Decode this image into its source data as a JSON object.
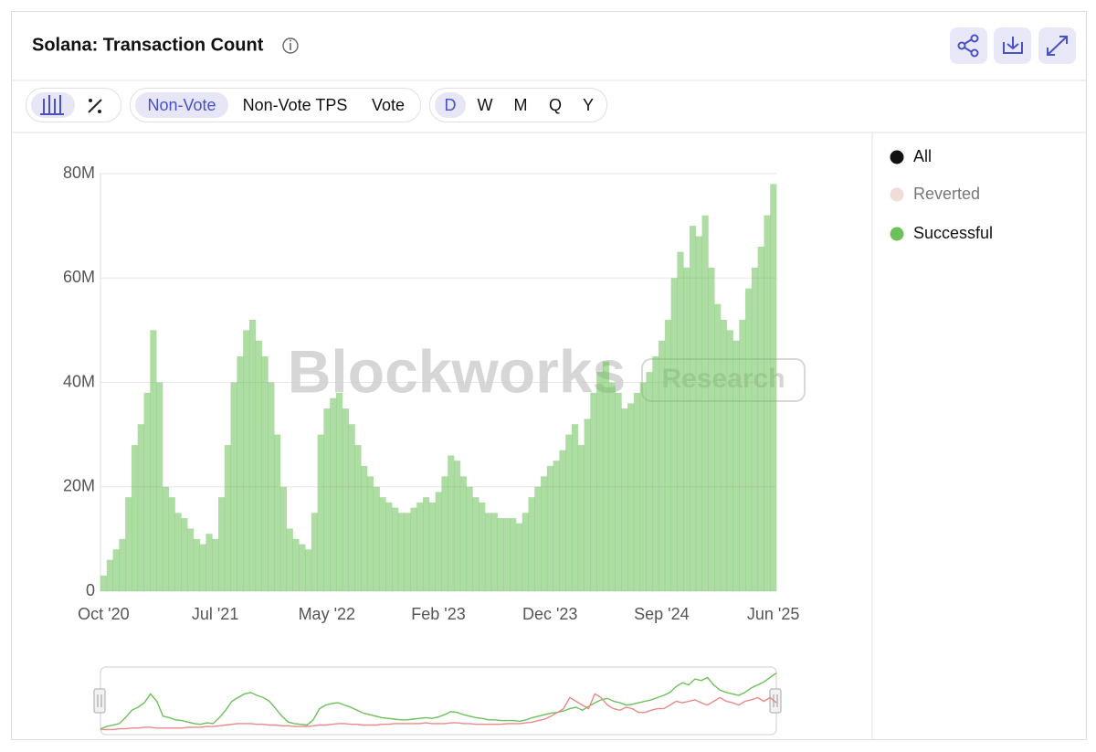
{
  "header": {
    "title": "Solana: Transaction Count"
  },
  "toolbar": {
    "metrics": [
      "Non-Vote",
      "Non-Vote TPS",
      "Vote"
    ],
    "active_metric": 0,
    "intervals": [
      "D",
      "W",
      "M",
      "Q",
      "Y"
    ],
    "active_interval": 0
  },
  "chart_data": {
    "type": "bar",
    "watermark": [
      "Blockworks",
      "Research"
    ],
    "categories": [
      "Oct '20",
      null,
      null,
      null,
      null,
      null,
      null,
      null,
      null,
      null,
      null,
      null,
      null,
      null,
      null,
      null,
      null,
      null,
      "Jul '21",
      null,
      null,
      null,
      null,
      null,
      null,
      null,
      null,
      null,
      null,
      null,
      null,
      null,
      null,
      null,
      null,
      null,
      "May '22",
      null,
      null,
      null,
      null,
      null,
      null,
      null,
      null,
      null,
      null,
      null,
      null,
      null,
      null,
      null,
      null,
      null,
      "Feb '23",
      null,
      null,
      null,
      null,
      null,
      null,
      null,
      null,
      null,
      null,
      null,
      null,
      null,
      null,
      null,
      null,
      null,
      "Dec '23",
      null,
      null,
      null,
      null,
      null,
      null,
      null,
      null,
      null,
      null,
      null,
      null,
      null,
      null,
      null,
      null,
      null,
      "Sep '24",
      null,
      null,
      null,
      null,
      null,
      null,
      null,
      null,
      null,
      null,
      null,
      null,
      null,
      null,
      null,
      null,
      null,
      "Jun '25"
    ],
    "legend": [
      {
        "name": "All",
        "color": "#111111"
      },
      {
        "name": "Reverted",
        "color": "#f2dcd9"
      },
      {
        "name": "Successful",
        "color": "#6cc15a"
      }
    ],
    "series": [
      {
        "color": "#6cc15a",
        "values": [
          3000000.0,
          6000000.0,
          8000000.0,
          10000000.0,
          18000000.0,
          28000000.0,
          32000000.0,
          38000000.0,
          50000000.0,
          40000000.0,
          20000000.0,
          18000000.0,
          15000000.0,
          14000000.0,
          12000000.0,
          10000000.0,
          9000000.0,
          11000000.0,
          10000000.0,
          18000000.0,
          28000000.0,
          40000000.0,
          45000000.0,
          50000000.0,
          52000000.0,
          48000000.0,
          45000000.0,
          40000000.0,
          30000000.0,
          20000000.0,
          12000000.0,
          10000000.0,
          9000000.0,
          8000000.0,
          15000000.0,
          30000000.0,
          35000000.0,
          37000000.0,
          38000000.0,
          35000000.0,
          32000000.0,
          28000000.0,
          24000000.0,
          22000000.0,
          20000000.0,
          18000000.0,
          17000000.0,
          16000000.0,
          15000000.0,
          15000000.0,
          16000000.0,
          17000000.0,
          18000000.0,
          17000000.0,
          19000000.0,
          22000000.0,
          26000000.0,
          25000000.0,
          22000000.0,
          20000000.0,
          18000000.0,
          17000000.0,
          15000000.0,
          15000000.0,
          14000000.0,
          14000000.0,
          14000000.0,
          13000000.0,
          15000000.0,
          18000000.0,
          20000000.0,
          22000000.0,
          24000000.0,
          25000000.0,
          27000000.0,
          30000000.0,
          32000000.0,
          28000000.0,
          33000000.0,
          38000000.0,
          42000000.0,
          44000000.0,
          40000000.0,
          38000000.0,
          35000000.0,
          36000000.0,
          38000000.0,
          40000000.0,
          42000000.0,
          45000000.0,
          48000000.0,
          52000000.0,
          60000000.0,
          65000000.0,
          62000000.0,
          70000000.0,
          68000000.0,
          72000000.0,
          62000000.0,
          55000000.0,
          52000000.0,
          50000000.0,
          48000000.0,
          52000000.0,
          58000000.0,
          62000000.0,
          66000000.0,
          72000000.0,
          78000000.0
        ]
      },
      {
        "color": "#e88a8a",
        "values": [
          2000000.0,
          2000000.0,
          2000000.0,
          3000000.0,
          3000000.0,
          4000000.0,
          4000000.0,
          5000000.0,
          5000000.0,
          4000000.0,
          4000000.0,
          4000000.0,
          4000000.0,
          4000000.0,
          5000000.0,
          5000000.0,
          5000000.0,
          6000000.0,
          6000000.0,
          7000000.0,
          8000000.0,
          9000000.0,
          10000000.0,
          10000000.0,
          10000000.0,
          9000000.0,
          9000000.0,
          8000000.0,
          8000000.0,
          7000000.0,
          7000000.0,
          6000000.0,
          6000000.0,
          6000000.0,
          7000000.0,
          8000000.0,
          8000000.0,
          9000000.0,
          10000000.0,
          10000000.0,
          9000000.0,
          9000000.0,
          8000000.0,
          8000000.0,
          8000000.0,
          9000000.0,
          9000000.0,
          10000000.0,
          10000000.0,
          10000000.0,
          10000000.0,
          10000000.0,
          11000000.0,
          10000000.0,
          10000000.0,
          10000000.0,
          11000000.0,
          11000000.0,
          10000000.0,
          10000000.0,
          9000000.0,
          9000000.0,
          9000000.0,
          9000000.0,
          9000000.0,
          10000000.0,
          10000000.0,
          10000000.0,
          11000000.0,
          12000000.0,
          14000000.0,
          16000000.0,
          20000000.0,
          25000000.0,
          30000000.0,
          45000000.0,
          40000000.0,
          35000000.0,
          30000000.0,
          50000000.0,
          45000000.0,
          35000000.0,
          30000000.0,
          28000000.0,
          32000000.0,
          30000000.0,
          25000000.0,
          25000000.0,
          28000000.0,
          30000000.0,
          30000000.0,
          35000000.0,
          40000000.0,
          38000000.0,
          40000000.0,
          42000000.0,
          38000000.0,
          35000000.0,
          40000000.0,
          45000000.0,
          40000000.0,
          38000000.0,
          35000000.0,
          40000000.0,
          42000000.0,
          45000000.0,
          40000000.0,
          45000000.0,
          38000000.0
        ]
      }
    ],
    "ylim": [
      0,
      80000000
    ],
    "yticks": [
      0,
      {
        "value": 20000000,
        "label": "20M"
      },
      {
        "value": 40000000,
        "label": "40M"
      },
      {
        "value": 60000000,
        "label": "60M"
      },
      {
        "value": 80000000,
        "label": "80M"
      }
    ],
    "grid": true
  }
}
